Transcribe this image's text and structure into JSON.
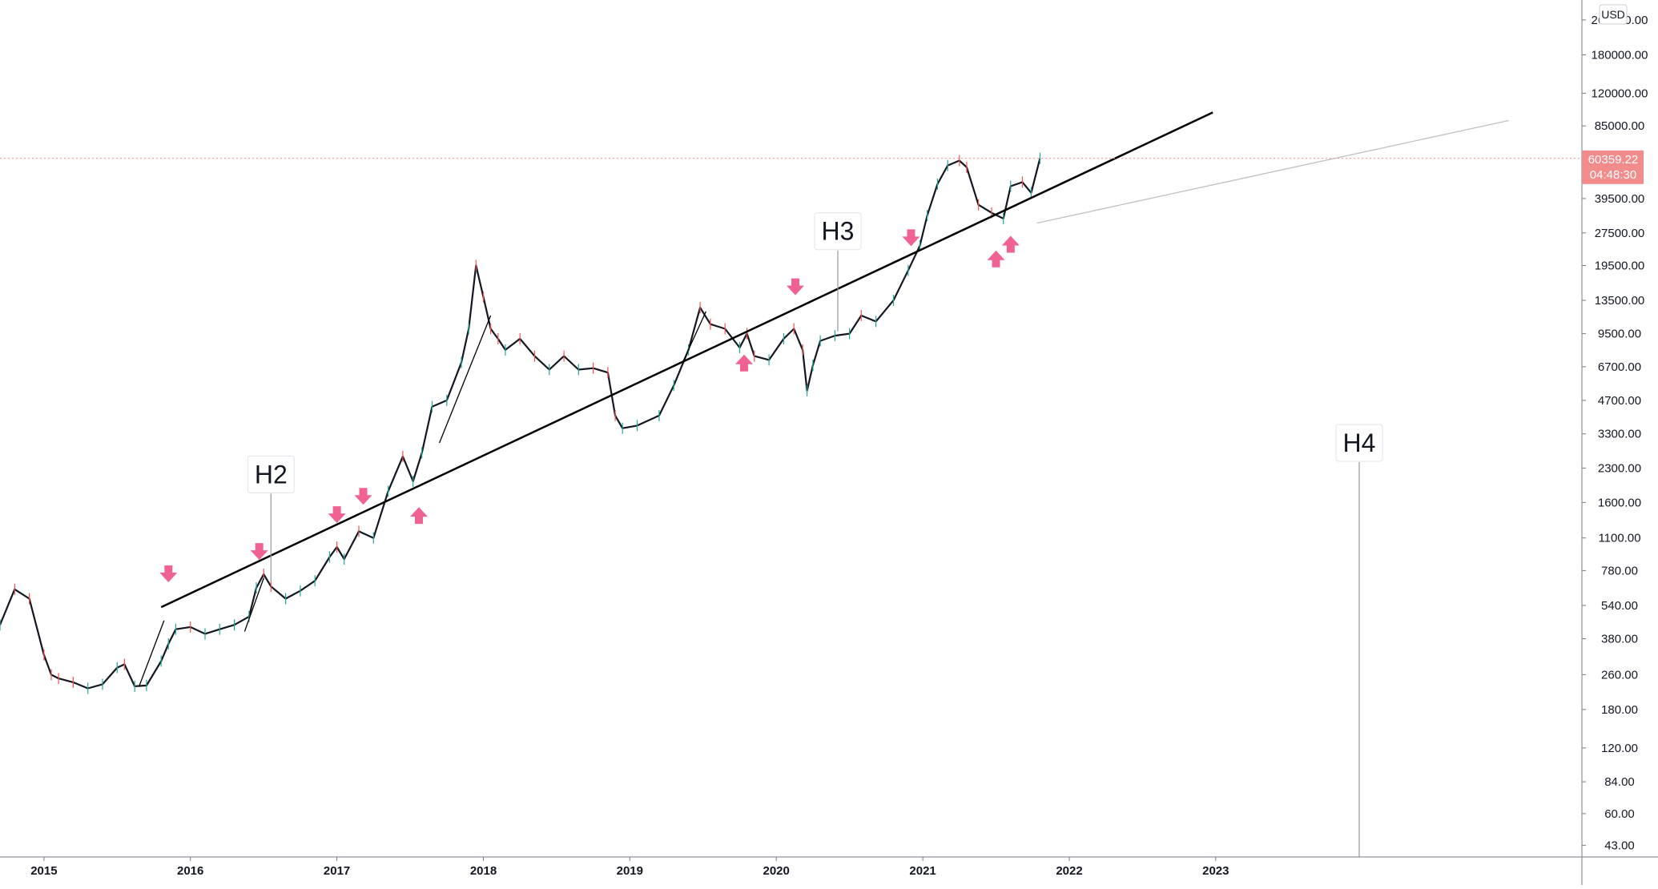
{
  "chart_data": {
    "type": "candlestick",
    "title": "",
    "scale": "log",
    "currency_badge": "USD",
    "x_ticks": [
      "2015",
      "2016",
      "2017",
      "2018",
      "2019",
      "2020",
      "2021",
      "2022",
      "2023"
    ],
    "y_ticks": [
      "43.00",
      "60.00",
      "84.00",
      "120.00",
      "180.00",
      "260.00",
      "380.00",
      "540.00",
      "780.00",
      "1100.00",
      "1600.00",
      "2300.00",
      "3300.00",
      "4700.00",
      "6700.00",
      "9500.00",
      "13500.00",
      "19500.00",
      "27500.00",
      "39500.00",
      "85000.00",
      "120000.00",
      "180000.00",
      "260000.00"
    ],
    "ylim": [
      38,
      300000
    ],
    "xlim": [
      2014.7,
      2025.5
    ],
    "current_price": {
      "value": "60359.22",
      "countdown": "04:48:30",
      "color": "#f28b8b"
    },
    "price_series": [
      [
        2014.7,
        440
      ],
      [
        2014.8,
        640
      ],
      [
        2014.9,
        580
      ],
      [
        2015.0,
        320
      ],
      [
        2015.05,
        260
      ],
      [
        2015.1,
        250
      ],
      [
        2015.2,
        240
      ],
      [
        2015.3,
        225
      ],
      [
        2015.4,
        235
      ],
      [
        2015.5,
        280
      ],
      [
        2015.55,
        290
      ],
      [
        2015.62,
        230
      ],
      [
        2015.7,
        232
      ],
      [
        2015.8,
        300
      ],
      [
        2015.85,
        360
      ],
      [
        2015.9,
        420
      ],
      [
        2016.0,
        430
      ],
      [
        2016.1,
        400
      ],
      [
        2016.2,
        420
      ],
      [
        2016.3,
        440
      ],
      [
        2016.4,
        480
      ],
      [
        2016.45,
        650
      ],
      [
        2016.5,
        750
      ],
      [
        2016.55,
        660
      ],
      [
        2016.65,
        580
      ],
      [
        2016.75,
        630
      ],
      [
        2016.85,
        700
      ],
      [
        2016.95,
        900
      ],
      [
        2017.0,
        1000
      ],
      [
        2017.05,
        880
      ],
      [
        2017.15,
        1180
      ],
      [
        2017.25,
        1100
      ],
      [
        2017.35,
        1800
      ],
      [
        2017.45,
        2600
      ],
      [
        2017.52,
        2000
      ],
      [
        2017.58,
        2700
      ],
      [
        2017.65,
        4400
      ],
      [
        2017.75,
        4700
      ],
      [
        2017.85,
        7000
      ],
      [
        2017.9,
        10000
      ],
      [
        2017.95,
        19500
      ],
      [
        2018.0,
        14000
      ],
      [
        2018.05,
        10000
      ],
      [
        2018.1,
        9000
      ],
      [
        2018.15,
        8000
      ],
      [
        2018.25,
        9000
      ],
      [
        2018.35,
        7500
      ],
      [
        2018.45,
        6500
      ],
      [
        2018.55,
        7500
      ],
      [
        2018.65,
        6500
      ],
      [
        2018.75,
        6600
      ],
      [
        2018.85,
        6300
      ],
      [
        2018.9,
        4000
      ],
      [
        2018.95,
        3500
      ],
      [
        2019.05,
        3600
      ],
      [
        2019.2,
        4000
      ],
      [
        2019.3,
        5500
      ],
      [
        2019.4,
        8000
      ],
      [
        2019.48,
        12500
      ],
      [
        2019.55,
        10500
      ],
      [
        2019.65,
        10000
      ],
      [
        2019.75,
        8200
      ],
      [
        2019.8,
        9500
      ],
      [
        2019.85,
        7500
      ],
      [
        2019.95,
        7200
      ],
      [
        2020.05,
        9000
      ],
      [
        2020.12,
        10000
      ],
      [
        2020.18,
        8000
      ],
      [
        2020.21,
        5200
      ],
      [
        2020.25,
        6800
      ],
      [
        2020.3,
        8800
      ],
      [
        2020.4,
        9300
      ],
      [
        2020.5,
        9500
      ],
      [
        2020.58,
        11500
      ],
      [
        2020.68,
        10800
      ],
      [
        2020.8,
        13500
      ],
      [
        2020.9,
        18500
      ],
      [
        2020.98,
        24000
      ],
      [
        2021.03,
        33000
      ],
      [
        2021.1,
        46000
      ],
      [
        2021.17,
        56000
      ],
      [
        2021.25,
        59000
      ],
      [
        2021.3,
        55000
      ],
      [
        2021.38,
        37000
      ],
      [
        2021.47,
        34000
      ],
      [
        2021.55,
        32000
      ],
      [
        2021.6,
        45000
      ],
      [
        2021.68,
        47000
      ],
      [
        2021.74,
        42000
      ],
      [
        2021.8,
        60359
      ]
    ],
    "annotations": [
      {
        "text": "H2",
        "x": 2016.55,
        "y": 2150,
        "line_to_y": 700
      },
      {
        "text": "H3",
        "x": 2020.42,
        "y": 28000,
        "line_to_y": 9700
      },
      {
        "text": "H4",
        "x": 2023.98,
        "y": 3000,
        "line_to_y": 38
      }
    ],
    "trendlines": [
      {
        "x1": 2015.8,
        "y1": 530,
        "x2": 2022.98,
        "y2": 98000,
        "color": "#000000"
      },
      {
        "x1": 2021.78,
        "y1": 30500,
        "x2": 2025.0,
        "y2": 90000,
        "color": "#c0c0c0"
      },
      {
        "x1": 2015.65,
        "y1": 230,
        "x2": 2015.82,
        "y2": 460,
        "color": "#000000"
      },
      {
        "x1": 2016.37,
        "y1": 410,
        "x2": 2016.5,
        "y2": 720,
        "color": "#000000"
      },
      {
        "x1": 2017.7,
        "y1": 3000,
        "x2": 2018.05,
        "y2": 11500,
        "color": "#000000"
      },
      {
        "x1": 2019.36,
        "y1": 7000,
        "x2": 2019.52,
        "y2": 12000,
        "color": "#000000"
      }
    ],
    "arrows": [
      {
        "dir": "down",
        "x": 2015.85,
        "y": 750
      },
      {
        "dir": "down",
        "x": 2016.47,
        "y": 950
      },
      {
        "dir": "down",
        "x": 2017.0,
        "y": 1400
      },
      {
        "dir": "down",
        "x": 2017.18,
        "y": 1700
      },
      {
        "dir": "up",
        "x": 2017.56,
        "y": 1400
      },
      {
        "dir": "up",
        "x": 2019.78,
        "y": 7000
      },
      {
        "dir": "down",
        "x": 2020.13,
        "y": 15500
      },
      {
        "dir": "down",
        "x": 2020.92,
        "y": 26000
      },
      {
        "dir": "up",
        "x": 2021.5,
        "y": 21000
      },
      {
        "dir": "up",
        "x": 2021.6,
        "y": 24500
      }
    ],
    "arrow_color": "#f06292"
  }
}
